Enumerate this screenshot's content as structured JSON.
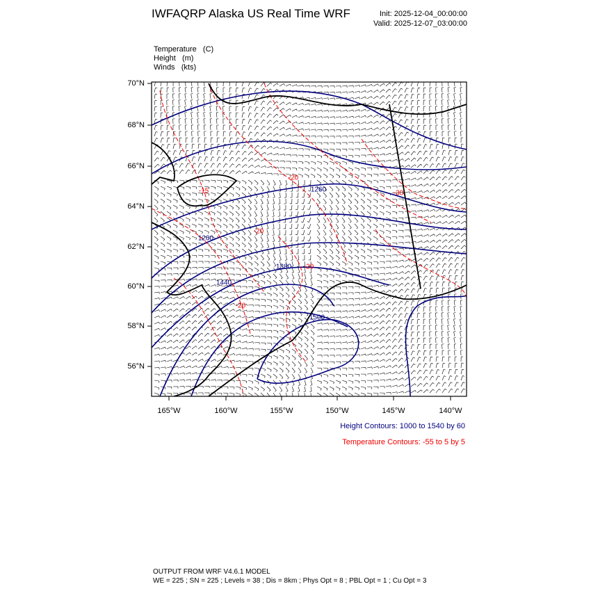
{
  "header": {
    "title": "IWFAQRP Alaska US Real Time WRF",
    "init": "Init: 2025-12-04_00:00:00",
    "valid": "Valid: 2025-12-07_03:00:00"
  },
  "fields": [
    "Temperature   (C)",
    "Height   (m)",
    "Winds   (kts)"
  ],
  "map": {
    "lat_labels": [
      "70°N",
      "68°N",
      "66°N",
      "64°N",
      "62°N",
      "60°N",
      "58°N",
      "56°N"
    ],
    "lon_labels": [
      "165°W",
      "160°W",
      "155°W",
      "150°W",
      "145°W",
      "140°W"
    ],
    "contour_labels": [
      "-20",
      "1260",
      "-30",
      "-15",
      "-20",
      "1200",
      "1380",
      "-20",
      "1440",
      "-20",
      "1500"
    ]
  },
  "legend": {
    "height": "Height Contours: 1000 to 1540 by 60",
    "temperature": "Temperature Contours: -55 to 5 by 5"
  },
  "footer": {
    "line1": "OUTPUT FROM WRF V4.6.1 MODEL",
    "line2": "WE = 225 ; SN = 225 ; Levels = 38 ; Dis = 8km ; Phys Opt = 8 ; PBL Opt = 1 ; Cu Opt = 3"
  }
}
